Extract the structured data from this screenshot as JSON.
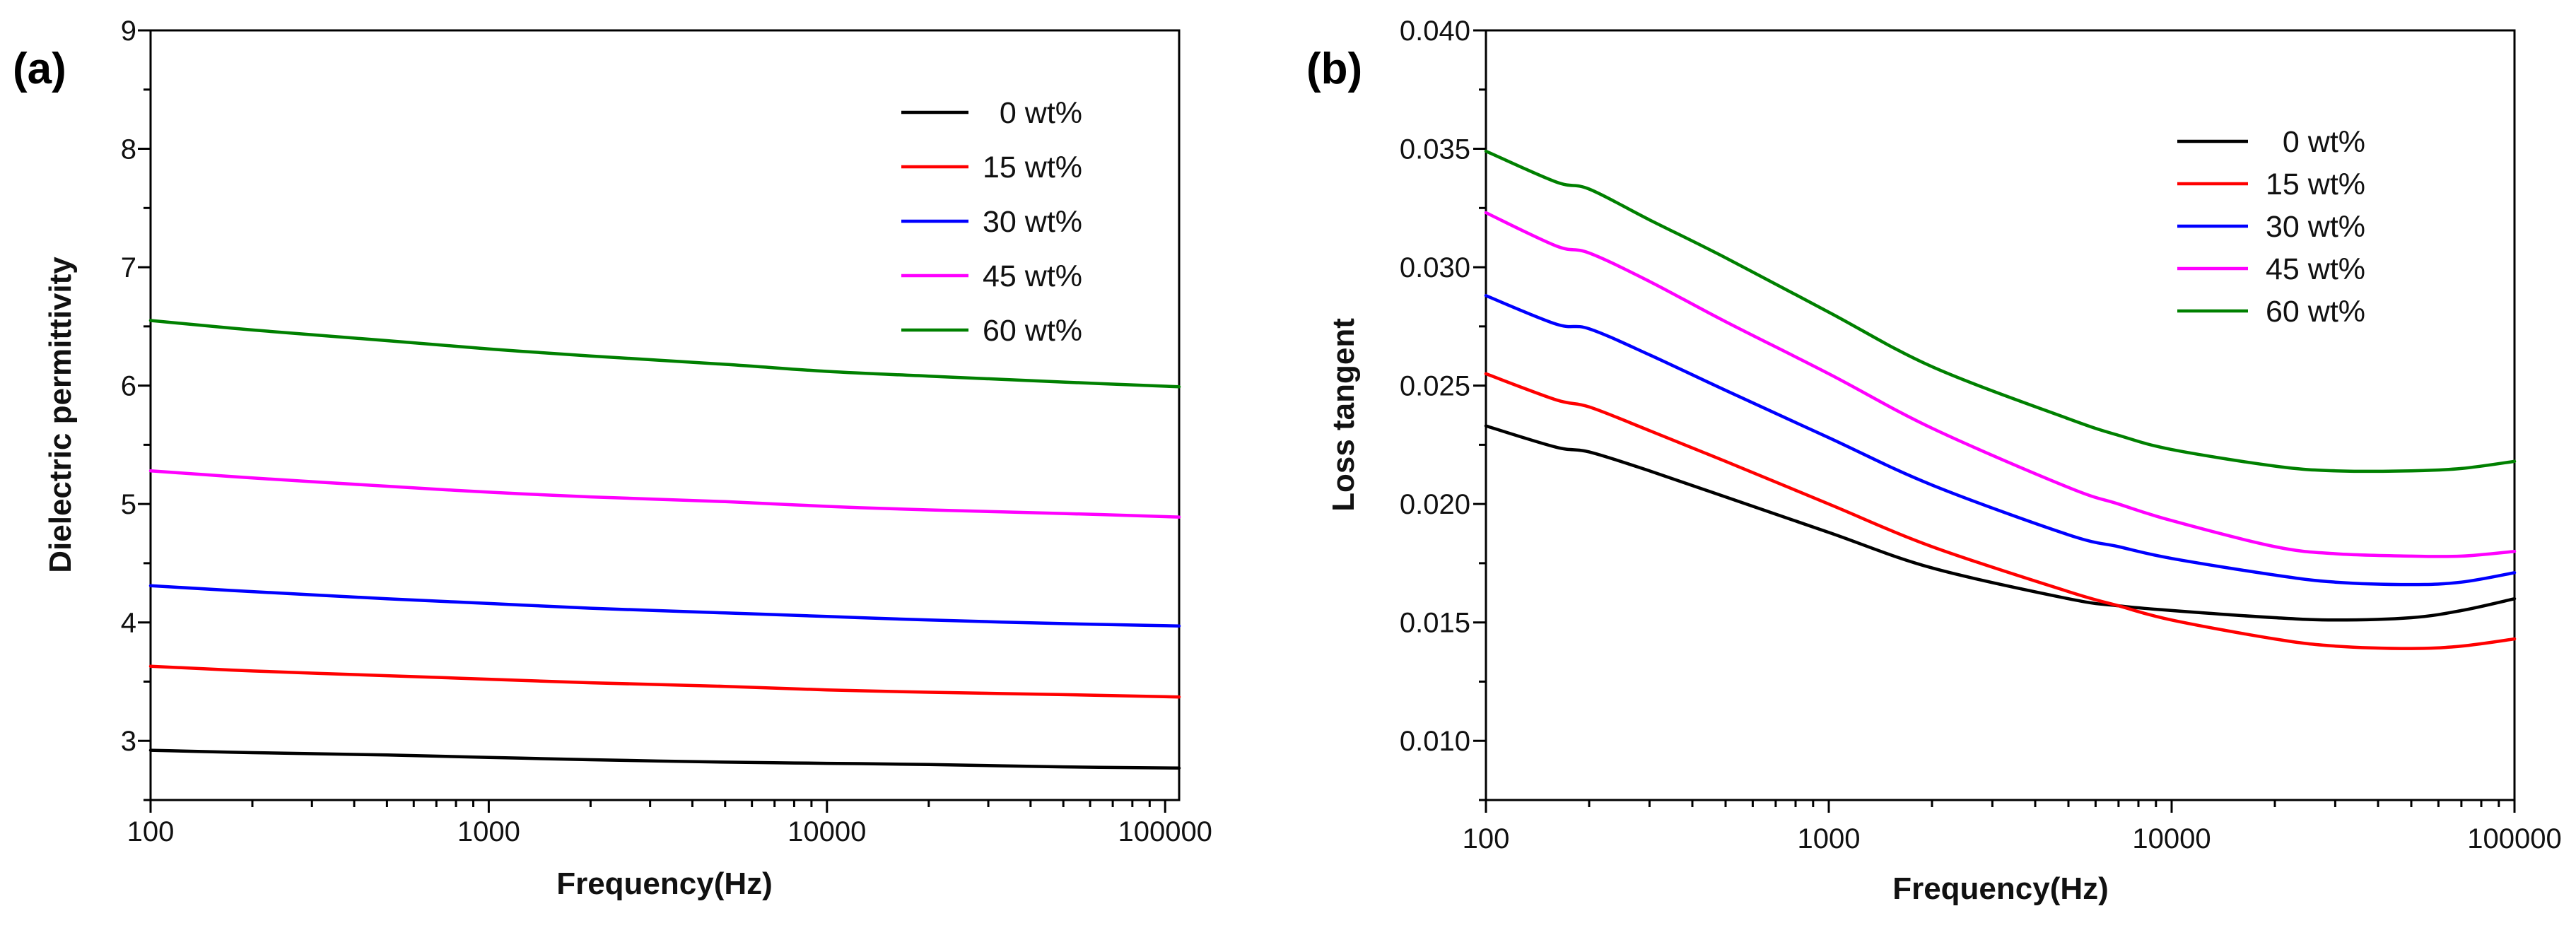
{
  "colors": {
    "0 wt%": "#000000",
    "15 wt%": "#ff0000",
    "30 wt%": "#0000ff",
    "45 wt%": "#ff00ff",
    "60 wt%": "#008000"
  },
  "chart_data": [
    {
      "type": "line",
      "panel_label": "(a)",
      "title": "",
      "xlabel": "Frequency(Hz)",
      "ylabel": "Dielectric permittivity",
      "xscale": "log",
      "xlim": [
        100,
        110000
      ],
      "ylim": [
        2.5,
        9
      ],
      "xticks": [
        100,
        1000,
        10000,
        100000
      ],
      "xtick_labels": [
        "100",
        "1000",
        "10000",
        "100000"
      ],
      "yticks": [
        3,
        4,
        5,
        6,
        7,
        8,
        9
      ],
      "ytick_labels": [
        "3",
        "4",
        "5",
        "6",
        "7",
        "8",
        "9"
      ],
      "legend_position": "top-right",
      "x": [
        100,
        200,
        500,
        1000,
        2000,
        5000,
        10000,
        20000,
        50000,
        110000
      ],
      "series": [
        {
          "name": "0 wt%",
          "values": [
            2.92,
            2.9,
            2.88,
            2.86,
            2.84,
            2.82,
            2.81,
            2.8,
            2.78,
            2.77
          ]
        },
        {
          "name": "15 wt%",
          "values": [
            3.63,
            3.59,
            3.55,
            3.52,
            3.49,
            3.46,
            3.43,
            3.41,
            3.39,
            3.37
          ]
        },
        {
          "name": "30 wt%",
          "values": [
            4.31,
            4.26,
            4.2,
            4.16,
            4.12,
            4.08,
            4.05,
            4.02,
            3.99,
            3.97
          ]
        },
        {
          "name": "45 wt%",
          "values": [
            5.28,
            5.22,
            5.15,
            5.1,
            5.06,
            5.02,
            4.98,
            4.95,
            4.92,
            4.89
          ]
        },
        {
          "name": "60 wt%",
          "values": [
            6.55,
            6.47,
            6.38,
            6.31,
            6.25,
            6.18,
            6.12,
            6.08,
            6.03,
            5.99
          ]
        }
      ]
    },
    {
      "type": "line",
      "panel_label": "(b)",
      "title": "",
      "xlabel": "Frequency(Hz)",
      "ylabel": "Loss tangent",
      "xscale": "log",
      "xlim": [
        100,
        100000
      ],
      "ylim": [
        0.0075,
        0.04
      ],
      "xticks": [
        100,
        1000,
        10000,
        100000
      ],
      "xtick_labels": [
        "100",
        "1000",
        "10000",
        "100000"
      ],
      "yticks": [
        0.01,
        0.015,
        0.02,
        0.025,
        0.03,
        0.035,
        0.04
      ],
      "ytick_labels": [
        "0.010",
        "0.015",
        "0.020",
        "0.025",
        "0.030",
        "0.035",
        "0.040"
      ],
      "legend_position": "top-right",
      "x": [
        100,
        160,
        200,
        300,
        500,
        1000,
        2000,
        5000,
        7000,
        10000,
        20000,
        30000,
        50000,
        70000,
        100000
      ],
      "series": [
        {
          "name": "0 wt%",
          "values": [
            0.0233,
            0.0224,
            0.0222,
            0.0214,
            0.0203,
            0.0188,
            0.0173,
            0.016,
            0.0157,
            0.0155,
            0.0152,
            0.0151,
            0.0152,
            0.0155,
            0.016
          ]
        },
        {
          "name": "15 wt%",
          "values": [
            0.0255,
            0.0244,
            0.0241,
            0.0231,
            0.0218,
            0.02,
            0.0182,
            0.0163,
            0.0157,
            0.0151,
            0.0143,
            0.014,
            0.0139,
            0.014,
            0.0143
          ]
        },
        {
          "name": "30 wt%",
          "values": [
            0.0288,
            0.0276,
            0.0274,
            0.0263,
            0.0248,
            0.0228,
            0.0208,
            0.0187,
            0.0182,
            0.0177,
            0.017,
            0.0167,
            0.0166,
            0.0167,
            0.0171
          ]
        },
        {
          "name": "45 wt%",
          "values": [
            0.0323,
            0.0309,
            0.0306,
            0.0294,
            0.0277,
            0.0255,
            0.0232,
            0.0207,
            0.02,
            0.0193,
            0.0182,
            0.0179,
            0.0178,
            0.0178,
            0.018
          ]
        },
        {
          "name": "60 wt%",
          "values": [
            0.0349,
            0.0336,
            0.0333,
            0.032,
            0.0304,
            0.0281,
            0.0258,
            0.0236,
            0.0229,
            0.0223,
            0.0216,
            0.0214,
            0.0214,
            0.0215,
            0.0218
          ]
        }
      ]
    }
  ]
}
